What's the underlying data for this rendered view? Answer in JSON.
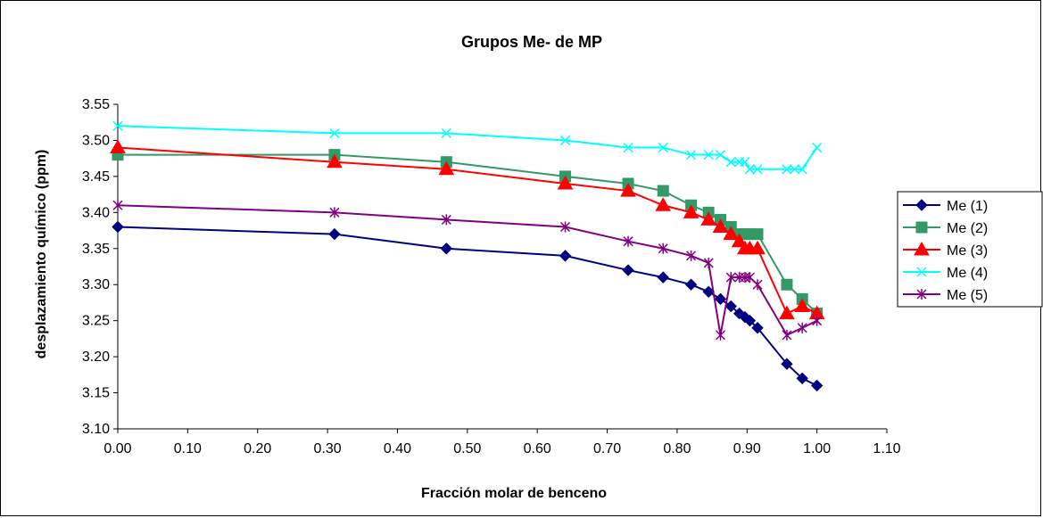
{
  "chart_data": {
    "type": "line",
    "title": "Grupos Me- de MP",
    "xlabel": "Fracción molar de benceno",
    "ylabel": "desplazamiento químico (ppm)",
    "xlim": [
      0.0,
      1.1
    ],
    "ylim": [
      3.1,
      3.55
    ],
    "x_ticks": [
      "0.00",
      "0.10",
      "0.20",
      "0.30",
      "0.40",
      "0.50",
      "0.60",
      "0.70",
      "0.80",
      "0.90",
      "1.00",
      "1.10"
    ],
    "y_ticks": [
      "3.10",
      "3.15",
      "3.20",
      "3.25",
      "3.30",
      "3.35",
      "3.40",
      "3.45",
      "3.50",
      "3.55"
    ],
    "grid": false,
    "legend_position": "right",
    "series": [
      {
        "name": "Me (1)",
        "color": "#000080",
        "marker": "diamond",
        "x": [
          0.0,
          0.31,
          0.47,
          0.64,
          0.73,
          0.78,
          0.82,
          0.845,
          0.862,
          0.877,
          0.889,
          0.897,
          0.904,
          0.915,
          0.957,
          0.979,
          1.0
        ],
        "y": [
          3.38,
          3.37,
          3.35,
          3.34,
          3.32,
          3.31,
          3.3,
          3.29,
          3.28,
          3.27,
          3.26,
          3.255,
          3.25,
          3.24,
          3.19,
          3.17,
          3.16
        ]
      },
      {
        "name": "Me (2)",
        "color": "#339966",
        "marker": "square",
        "x": [
          0.0,
          0.31,
          0.47,
          0.64,
          0.73,
          0.78,
          0.82,
          0.845,
          0.862,
          0.877,
          0.889,
          0.897,
          0.904,
          0.915,
          0.957,
          0.979,
          1.0
        ],
        "y": [
          3.48,
          3.48,
          3.47,
          3.45,
          3.44,
          3.43,
          3.41,
          3.4,
          3.39,
          3.38,
          3.37,
          3.37,
          3.37,
          3.37,
          3.3,
          3.28,
          3.26
        ]
      },
      {
        "name": "Me (3)",
        "color": "#ff0000",
        "marker": "triangle",
        "x": [
          0.0,
          0.31,
          0.47,
          0.64,
          0.73,
          0.78,
          0.82,
          0.845,
          0.862,
          0.877,
          0.889,
          0.897,
          0.904,
          0.915,
          0.957,
          0.979,
          1.0
        ],
        "y": [
          3.49,
          3.47,
          3.46,
          3.44,
          3.43,
          3.41,
          3.4,
          3.39,
          3.38,
          3.37,
          3.36,
          3.35,
          3.35,
          3.35,
          3.26,
          3.27,
          3.26
        ]
      },
      {
        "name": "Me (4)",
        "color": "#00ffff",
        "marker": "x",
        "x": [
          0.0,
          0.31,
          0.47,
          0.64,
          0.73,
          0.78,
          0.82,
          0.845,
          0.862,
          0.877,
          0.889,
          0.897,
          0.904,
          0.915,
          0.957,
          0.968,
          0.979,
          1.0
        ],
        "y": [
          3.52,
          3.51,
          3.51,
          3.5,
          3.49,
          3.49,
          3.48,
          3.48,
          3.48,
          3.47,
          3.47,
          3.47,
          3.46,
          3.46,
          3.46,
          3.46,
          3.46,
          3.49
        ]
      },
      {
        "name": "Me (5)",
        "color": "#800080",
        "marker": "star",
        "x": [
          0.0,
          0.31,
          0.47,
          0.64,
          0.73,
          0.78,
          0.82,
          0.845,
          0.862,
          0.877,
          0.889,
          0.897,
          0.904,
          0.915,
          0.957,
          0.979,
          1.0
        ],
        "y": [
          3.41,
          3.4,
          3.39,
          3.38,
          3.36,
          3.35,
          3.34,
          3.33,
          3.23,
          3.31,
          3.31,
          3.31,
          3.31,
          3.3,
          3.23,
          3.24,
          3.25
        ]
      }
    ]
  }
}
